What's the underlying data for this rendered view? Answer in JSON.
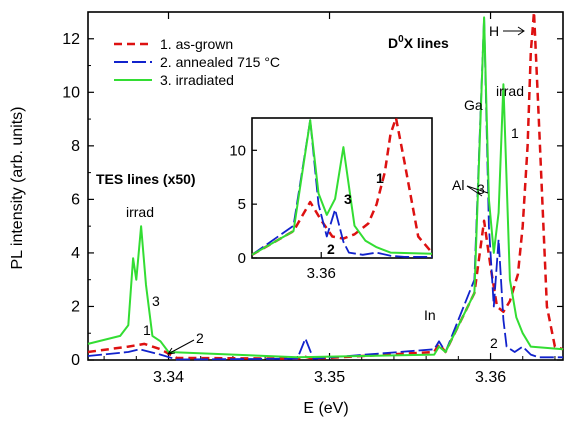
{
  "chart_data": {
    "type": "line",
    "xlabel": "E (eV)",
    "ylabel": "PL intensity (arb. units)",
    "xlim": [
      3.335,
      3.3645
    ],
    "ylim": [
      0,
      13
    ],
    "xticks": [
      "3.34",
      "3.35",
      "3.36"
    ],
    "yticks": [
      "0",
      "2",
      "4",
      "6",
      "8",
      "10",
      "12"
    ],
    "legend_position": "top-left",
    "series": [
      {
        "name": "1. as-grown",
        "color": "#dd1111",
        "dash": "dashed",
        "x": [
          3.335,
          3.3375,
          3.3385,
          3.3395,
          3.3405,
          3.348,
          3.3485,
          3.349,
          3.3565,
          3.3568,
          3.3572,
          3.359,
          3.3596,
          3.36,
          3.3604,
          3.3608,
          3.3612,
          3.3617,
          3.362,
          3.3623,
          3.3625,
          3.3627,
          3.363,
          3.3635,
          3.364,
          3.3645
        ],
        "y": [
          0.3,
          0.5,
          0.6,
          0.4,
          0.08,
          0.05,
          0.12,
          0.05,
          0.3,
          0.6,
          0.3,
          2.5,
          5.2,
          3.5,
          2.0,
          1.8,
          2.2,
          3.2,
          5.0,
          8.0,
          11.5,
          13.0,
          9.0,
          2.0,
          0.5,
          0.4
        ]
      },
      {
        "name": "2. annealed 715 °C",
        "color": "#1122cc",
        "dash": "long-dashed",
        "x": [
          3.335,
          3.3375,
          3.3382,
          3.3395,
          3.3405,
          3.348,
          3.3485,
          3.349,
          3.3565,
          3.3568,
          3.3572,
          3.359,
          3.3596,
          3.3599,
          3.3602,
          3.3605,
          3.3608,
          3.361,
          3.3615,
          3.362,
          3.3625,
          3.363,
          3.3645
        ],
        "y": [
          0.15,
          0.3,
          0.4,
          0.2,
          0.02,
          0.05,
          0.8,
          0.05,
          0.4,
          0.7,
          0.3,
          3.0,
          12.8,
          5.0,
          2.0,
          4.5,
          1.5,
          0.5,
          0.3,
          0.5,
          0.2,
          0.1,
          0.1
        ]
      },
      {
        "name": "3. irradiated",
        "color": "#33dd33",
        "dash": "solid",
        "x": [
          3.335,
          3.337,
          3.3375,
          3.3378,
          3.338,
          3.3383,
          3.3386,
          3.339,
          3.3395,
          3.34,
          3.348,
          3.3565,
          3.3568,
          3.3572,
          3.359,
          3.3596,
          3.3599,
          3.3602,
          3.3605,
          3.3608,
          3.3612,
          3.3616,
          3.362,
          3.3625,
          3.3645
        ],
        "y": [
          0.6,
          0.9,
          1.3,
          3.8,
          3.0,
          5.0,
          2.8,
          0.9,
          0.7,
          0.3,
          0.1,
          0.2,
          0.5,
          0.3,
          2.5,
          12.8,
          6.0,
          4.0,
          5.5,
          10.3,
          3.0,
          1.6,
          1.0,
          0.5,
          0.4
        ]
      }
    ],
    "annotations": {
      "tes_lines": "TES lines (x50)",
      "d0x_prefix": "D",
      "d0x_sup": "0",
      "d0x_suffix": "X lines",
      "irrad_left": "irrad",
      "irrad_right": "irrad",
      "ga": "Ga",
      "al": "Al",
      "in": "In",
      "h": "H",
      "lbl_1_left": "1",
      "lbl_2_left": "2",
      "lbl_3_left": "3",
      "lbl_1_right": "1",
      "lbl_2_right": "2",
      "lbl_3_right": "3"
    },
    "inset": {
      "xticks": [
        "3.36"
      ],
      "yticks": [
        "0",
        "5",
        "10"
      ],
      "labels": {
        "s1": "1",
        "s2": "2",
        "s3": "3"
      }
    }
  }
}
